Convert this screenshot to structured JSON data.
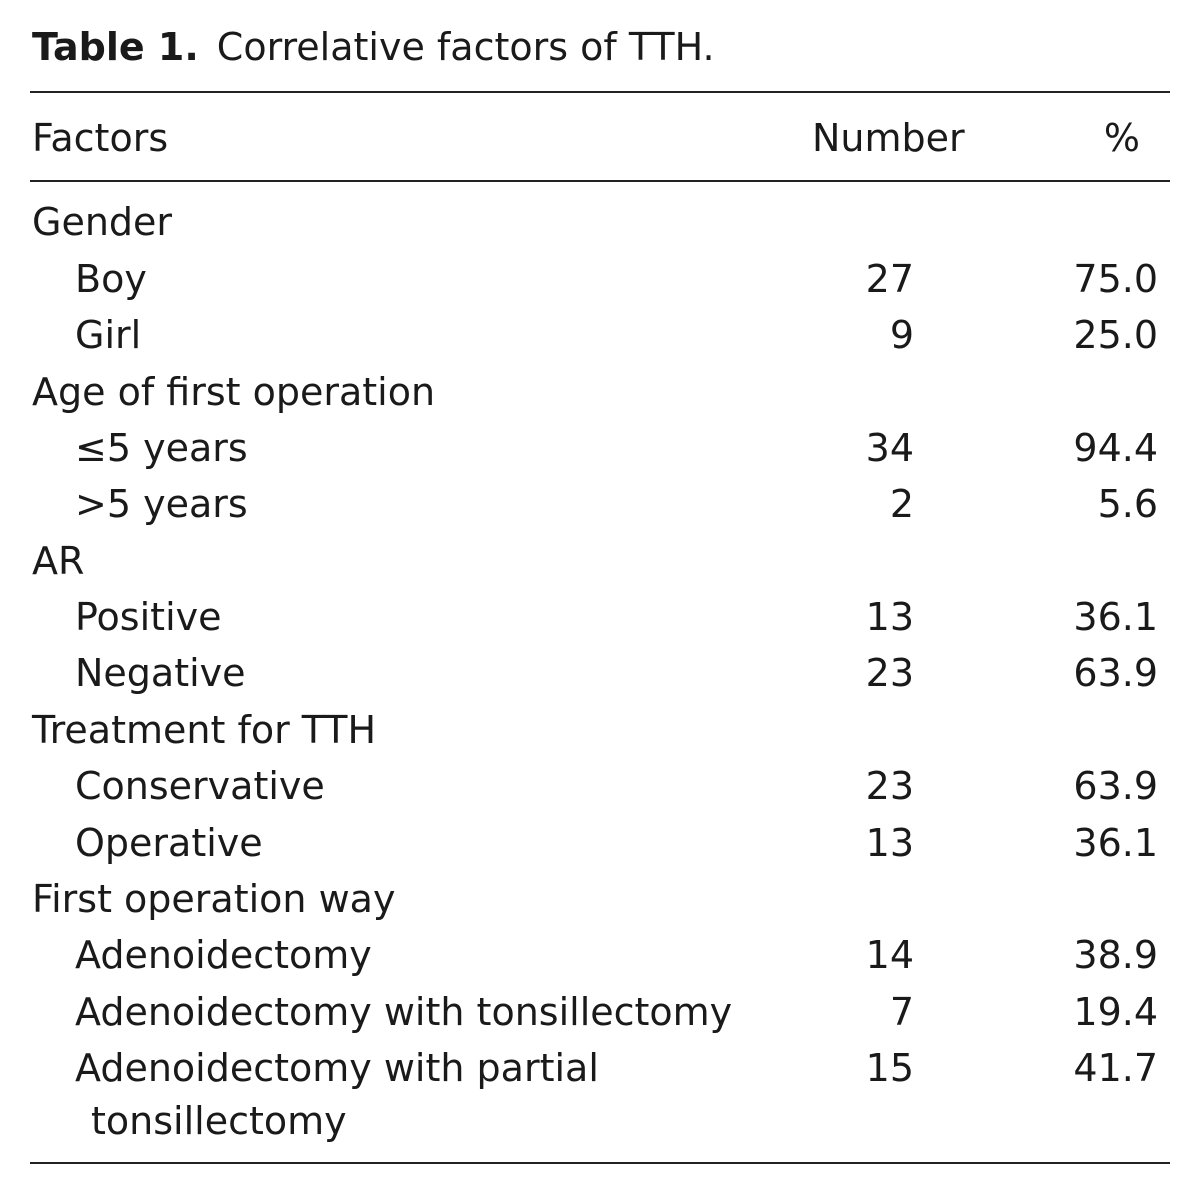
{
  "caption": {
    "label": "Table 1.",
    "text": "Correlative factors of TTH."
  },
  "headers": {
    "factors": "Factors",
    "number": "Number",
    "percent": "%"
  },
  "rows": [
    {
      "factor": "Gender",
      "number": "",
      "percent": "",
      "type": "group"
    },
    {
      "factor": "Boy",
      "number": "27",
      "percent": "75.0",
      "type": "sub"
    },
    {
      "factor": "Girl",
      "number": "9",
      "percent": "25.0",
      "type": "sub"
    },
    {
      "factor": "Age of first operation",
      "number": "",
      "percent": "",
      "type": "group"
    },
    {
      "factor": "≤5 years",
      "number": "34",
      "percent": "94.4",
      "type": "sub"
    },
    {
      "factor": ">5 years",
      "number": "2",
      "percent": "5.6",
      "type": "sub"
    },
    {
      "factor": "AR",
      "number": "",
      "percent": "",
      "type": "group"
    },
    {
      "factor": "Positive",
      "number": "13",
      "percent": "36.1",
      "type": "sub"
    },
    {
      "factor": "Negative",
      "number": "23",
      "percent": "63.9",
      "type": "sub"
    },
    {
      "factor": "Treatment for TTH",
      "number": "",
      "percent": "",
      "type": "group"
    },
    {
      "factor": "Conservative",
      "number": "23",
      "percent": "63.9",
      "type": "sub"
    },
    {
      "factor": "Operative",
      "number": "13",
      "percent": "36.1",
      "type": "sub"
    },
    {
      "factor": "First operation way",
      "number": "",
      "percent": "",
      "type": "group"
    },
    {
      "factor": "Adenoidectomy",
      "number": "14",
      "percent": "38.9",
      "type": "sub"
    },
    {
      "factor": "Adenoidectomy with tonsillectomy",
      "number": "7",
      "percent": "19.4",
      "type": "sub"
    },
    {
      "factor": "Adenoidectomy with partial",
      "factor_line2": "tonsillectomy",
      "number": "15",
      "percent": "41.7",
      "type": "sub"
    }
  ]
}
